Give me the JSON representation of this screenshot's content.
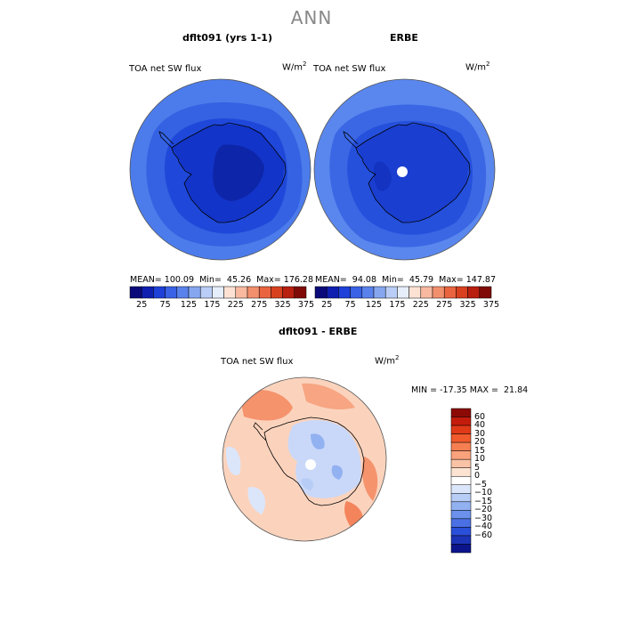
{
  "page_title": "ANN",
  "panels": [
    {
      "title": "dflt091 (yrs 1-1)",
      "variable": "TOA net SW flux",
      "units_base": "W/m",
      "units_exp": "2",
      "stats": "MEAN= 100.09  Min=  45.26  Max= 176.28"
    },
    {
      "title": "ERBE",
      "variable": "TOA net SW flux",
      "units_base": "W/m",
      "units_exp": "2",
      "stats": "MEAN=  94.08  Min=  45.79  Max= 147.87"
    },
    {
      "title": "dflt091 - ERBE",
      "variable": "TOA net SW flux",
      "units_base": "W/m",
      "units_exp": "2",
      "stats": "MIN = -17.35 MAX =  21.84"
    }
  ],
  "chart_data": [
    {
      "type": "heatmap",
      "title": "dflt091 (yrs 1-1)",
      "projection": "south polar stereographic",
      "variable": "TOA net SW flux",
      "units": "W/m2",
      "mean": 100.09,
      "min": 45.26,
      "max": 176.28,
      "color_levels": [
        25,
        75,
        125,
        175,
        225,
        275,
        325,
        375
      ],
      "colors": [
        "#0a0a7a",
        "#0f1fb0",
        "#1e40d8",
        "#3a62e6",
        "#5a82ec",
        "#86a7f0",
        "#b9cdf6",
        "#e6eefc",
        "#fde2d4",
        "#f8b9a0",
        "#f2906e",
        "#ea6440",
        "#d8411f",
        "#b81f0e",
        "#800a06"
      ]
    },
    {
      "type": "heatmap",
      "title": "ERBE",
      "projection": "south polar stereographic",
      "variable": "TOA net SW flux",
      "units": "W/m2",
      "mean": 94.08,
      "min": 45.79,
      "max": 147.87,
      "color_levels": [
        25,
        75,
        125,
        175,
        225,
        275,
        325,
        375
      ],
      "colors": [
        "#0a0a7a",
        "#0f1fb0",
        "#1e40d8",
        "#3a62e6",
        "#5a82ec",
        "#86a7f0",
        "#b9cdf6",
        "#e6eefc",
        "#fde2d4",
        "#f8b9a0",
        "#f2906e",
        "#ea6440",
        "#d8411f",
        "#b81f0e",
        "#800a06"
      ]
    },
    {
      "type": "heatmap",
      "title": "dflt091 - ERBE",
      "projection": "south polar stereographic",
      "variable": "TOA net SW flux",
      "units": "W/m2",
      "min": -17.35,
      "max": 21.84,
      "color_levels": [
        60,
        40,
        30,
        20,
        15,
        10,
        5,
        0,
        -5,
        -10,
        -15,
        -20,
        -30,
        -40,
        -60
      ],
      "colors": [
        "#8c0a06",
        "#c41c0c",
        "#e03a18",
        "#f05a2c",
        "#f67f52",
        "#f9a27c",
        "#fbc3a6",
        "#fde3d2",
        "#ffffff",
        "#dbe6fb",
        "#b8cdf6",
        "#92b1f1",
        "#6b91ec",
        "#4a70e4",
        "#2a4fd8",
        "#1b33b6",
        "#0b148a"
      ]
    }
  ]
}
